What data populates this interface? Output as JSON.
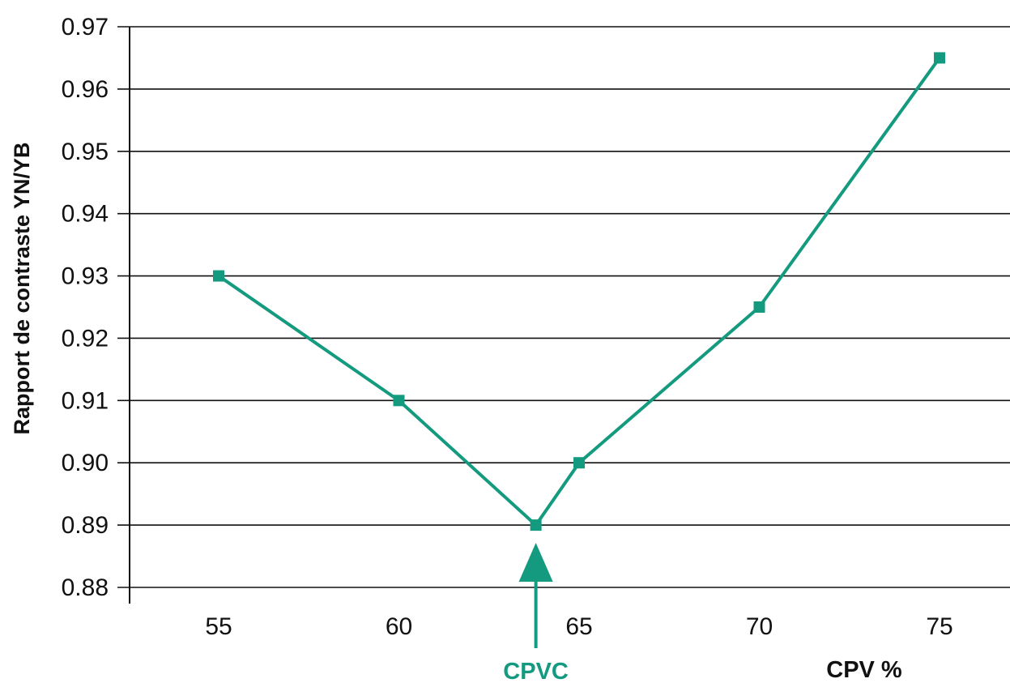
{
  "chart_data": {
    "type": "line",
    "title": "",
    "xlabel": "CPV %",
    "ylabel": "Rapport de contraste YN/YB",
    "xlim": [
      52.5,
      77.5
    ],
    "ylim": [
      0.88,
      0.97
    ],
    "x_ticks": [
      "55",
      "60",
      "65",
      "70",
      "75"
    ],
    "y_ticks": [
      "0.88",
      "0.89",
      "0.90",
      "0.91",
      "0.92",
      "0.93",
      "0.94",
      "0.95",
      "0.96",
      "0.97"
    ],
    "grid": "horizontal",
    "series": [
      {
        "color": "#139a7f",
        "marker": "square",
        "points": [
          {
            "x": 55,
            "y": 0.93
          },
          {
            "x": 60,
            "y": 0.91
          },
          {
            "x": 63.8,
            "y": 0.89
          },
          {
            "x": 65,
            "y": 0.9
          },
          {
            "x": 70,
            "y": 0.925
          },
          {
            "x": 75,
            "y": 0.965
          }
        ]
      }
    ],
    "annotation": {
      "label": "CPVC",
      "x": 63.8,
      "color": "#139a7f"
    }
  }
}
